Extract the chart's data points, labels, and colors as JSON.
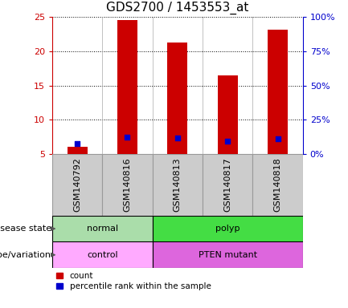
{
  "title": "GDS2700 / 1453553_at",
  "samples": [
    "GSM140792",
    "GSM140816",
    "GSM140813",
    "GSM140817",
    "GSM140818"
  ],
  "count_values": [
    6.0,
    24.6,
    21.3,
    16.5,
    23.1
  ],
  "percentile_values": [
    7.6,
    12.2,
    11.8,
    9.2,
    11.2
  ],
  "ylim_left": [
    5,
    25
  ],
  "ylim_right": [
    0,
    100
  ],
  "yticks_left": [
    5,
    10,
    15,
    20,
    25
  ],
  "yticks_right": [
    0,
    25,
    50,
    75,
    100
  ],
  "ytick_labels_right": [
    "0%",
    "25%",
    "50%",
    "75%",
    "100%"
  ],
  "bar_color": "#cc0000",
  "dot_color": "#0000cc",
  "bar_width": 0.4,
  "disease_state": {
    "groups": [
      {
        "label": "normal",
        "start": 0,
        "end": 2,
        "color": "#aaddaa"
      },
      {
        "label": "polyp",
        "start": 2,
        "end": 5,
        "color": "#44dd44"
      }
    ]
  },
  "genotype": {
    "groups": [
      {
        "label": "control",
        "start": 0,
        "end": 2,
        "color": "#ffaaff"
      },
      {
        "label": "PTEN mutant",
        "start": 2,
        "end": 5,
        "color": "#dd66dd"
      }
    ]
  },
  "disease_state_label": "disease state",
  "genotype_label": "genotype/variation",
  "legend_count_label": "count",
  "legend_percentile_label": "percentile rank within the sample",
  "left_axis_color": "#cc0000",
  "right_axis_color": "#0000cc",
  "title_fontsize": 11,
  "tick_fontsize": 8,
  "label_fontsize": 8,
  "row_label_fontsize": 8,
  "xtick_gray_bg": "#cccccc",
  "xtick_box_color": "#999999"
}
